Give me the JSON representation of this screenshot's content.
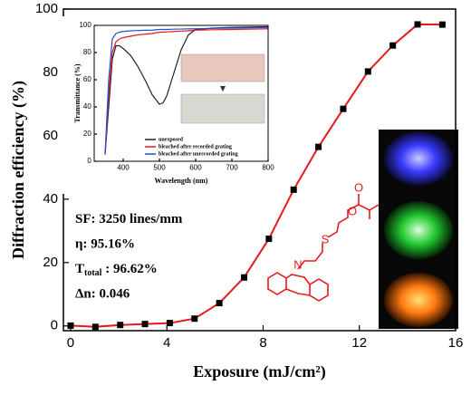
{
  "chart_data": [
    {
      "type": "line",
      "xlabel": "Exposure (mJ/cm²)",
      "ylabel": "Diffraction efficiency (%)",
      "x": [
        0,
        1.03,
        2.06,
        3.09,
        4.12,
        5.15,
        6.18,
        7.21,
        8.24,
        9.27,
        10.3,
        11.33,
        12.36,
        13.39,
        14.42,
        15.45
      ],
      "series": [
        {
          "color": "#e8191c",
          "marker_color": "#000000",
          "values": [
            0.1,
            -0.3,
            0.3,
            0.6,
            0.9,
            2.3,
            7.2,
            15.3,
            27.5,
            43,
            56.5,
            68.5,
            80.3,
            88.5,
            95.16,
            95.1
          ]
        }
      ],
      "markers": true,
      "xlim": [
        -0.3,
        16
      ],
      "xticks": [
        0,
        4,
        8,
        12,
        16
      ],
      "ylim": [
        -1.5,
        100
      ],
      "yticks": [
        0,
        20,
        40,
        60,
        80,
        100
      ],
      "annotations": [
        {
          "text": "SF: 3250 lines/mm"
        },
        {
          "text": "η: 95.16%"
        },
        {
          "text": "T",
          "subscript": "total",
          "after": " : 96.62%"
        },
        {
          "text": "Δn:  0.046"
        }
      ]
    },
    {
      "type": "line",
      "xlabel": "Wavelength (nm)",
      "ylabel": "Transmittance (%)",
      "x": [
        350,
        360,
        370,
        380,
        390,
        400,
        420,
        440,
        460,
        480,
        500,
        510,
        520,
        540,
        560,
        580,
        600,
        650,
        700,
        800
      ],
      "series": [
        {
          "name": "unexposed",
          "color": "#222222",
          "values": [
            5,
            40,
            75,
            85,
            85,
            83,
            78,
            70,
            60,
            49,
            42,
            43,
            48,
            65,
            82,
            93,
            97,
            98,
            98.5,
            99
          ]
        },
        {
          "name": "bleached after recorded grating",
          "color": "#e8191c",
          "values": [
            5,
            50,
            80,
            88,
            90,
            91,
            92,
            93,
            93.5,
            94,
            95,
            95,
            95.2,
            95.5,
            95.8,
            96,
            96.5,
            96.8,
            97,
            97.5
          ]
        },
        {
          "name": "bleached after unrecorded grating",
          "color": "#1f4fd8",
          "values": [
            5,
            60,
            90,
            94,
            95,
            95.5,
            96,
            96.2,
            96.4,
            96.5,
            97,
            97,
            97,
            97.2,
            97.3,
            97.4,
            97.5,
            97.8,
            98,
            98.5
          ]
        }
      ],
      "markers": false,
      "xlim": [
        320,
        800
      ],
      "xticks": [
        400,
        500,
        600,
        700,
        800
      ],
      "ylim": [
        0,
        100
      ],
      "yticks": [
        0,
        20,
        40,
        60,
        80,
        100
      ],
      "legend": "lower center"
    }
  ],
  "structure": {
    "atoms": [
      "N",
      "S",
      "O",
      "O"
    ]
  }
}
